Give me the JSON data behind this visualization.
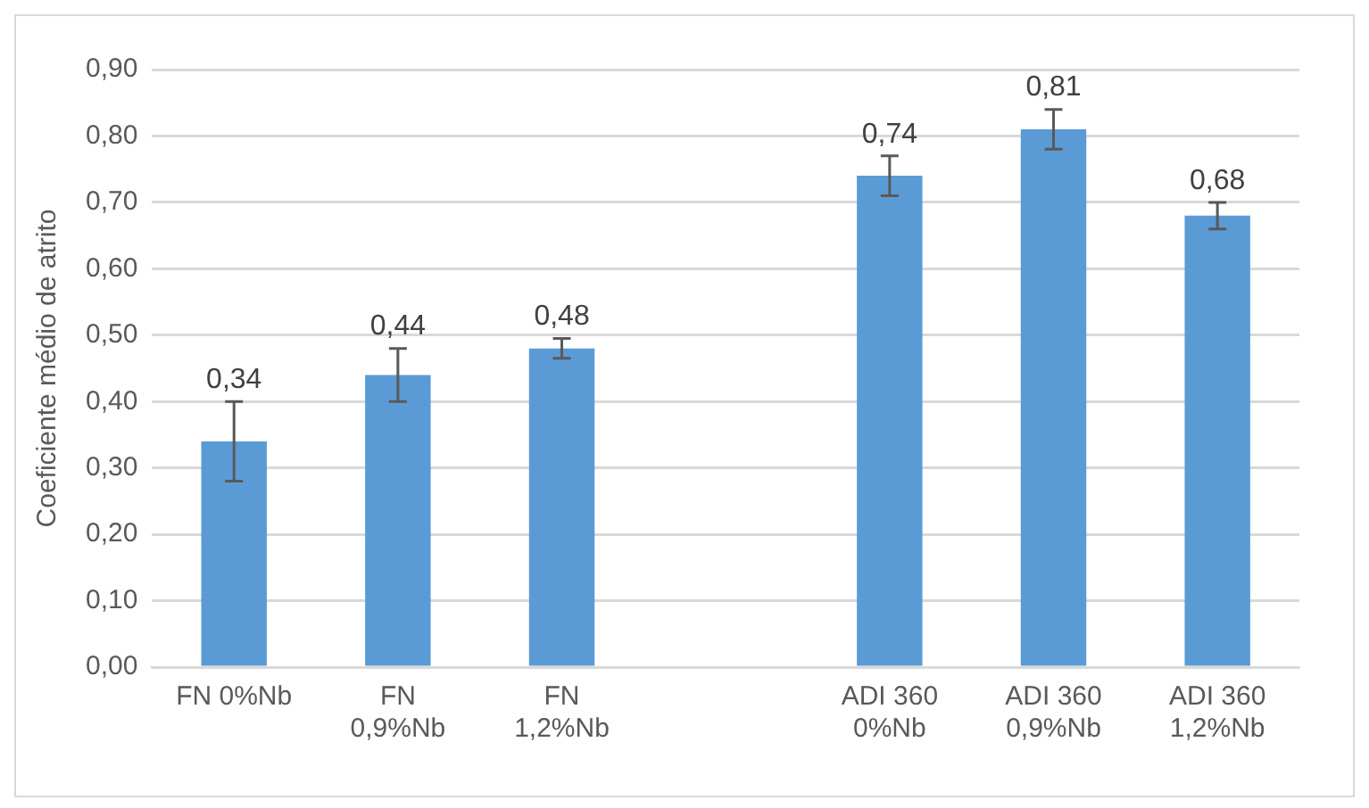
{
  "chart_data": {
    "type": "bar",
    "ylabel": "Coeficiente médio de atrito",
    "categories": [
      "FN 0%Nb",
      "FN\n0,9%Nb",
      "FN\n1,2%Nb",
      null,
      "ADI 360\n0%Nb",
      "ADI 360\n0,9%Nb",
      "ADI 360\n1,2%Nb"
    ],
    "values": [
      0.34,
      0.44,
      0.48,
      null,
      0.74,
      0.81,
      0.68
    ],
    "errors": [
      0.06,
      0.04,
      0.015,
      null,
      0.03,
      0.03,
      0.02
    ],
    "value_labels": [
      "0,34",
      "0,44",
      "0,48",
      null,
      "0,74",
      "0,81",
      "0,68"
    ],
    "color": "#5b9bd5",
    "ylim": [
      0,
      0.9
    ],
    "yticks": [
      {
        "value": 0,
        "label": "0,00"
      },
      {
        "value": 0.1,
        "label": "0,10"
      },
      {
        "value": 0.2,
        "label": "0,20"
      },
      {
        "value": 0.3,
        "label": "0,30"
      },
      {
        "value": 0.4,
        "label": "0,40"
      },
      {
        "value": 0.5,
        "label": "0,50"
      },
      {
        "value": 0.6,
        "label": "0,60"
      },
      {
        "value": 0.7,
        "label": "0,70"
      },
      {
        "value": 0.8,
        "label": "0,80"
      },
      {
        "value": 0.9,
        "label": "0,90"
      }
    ],
    "grid": "y",
    "legend": false
  }
}
